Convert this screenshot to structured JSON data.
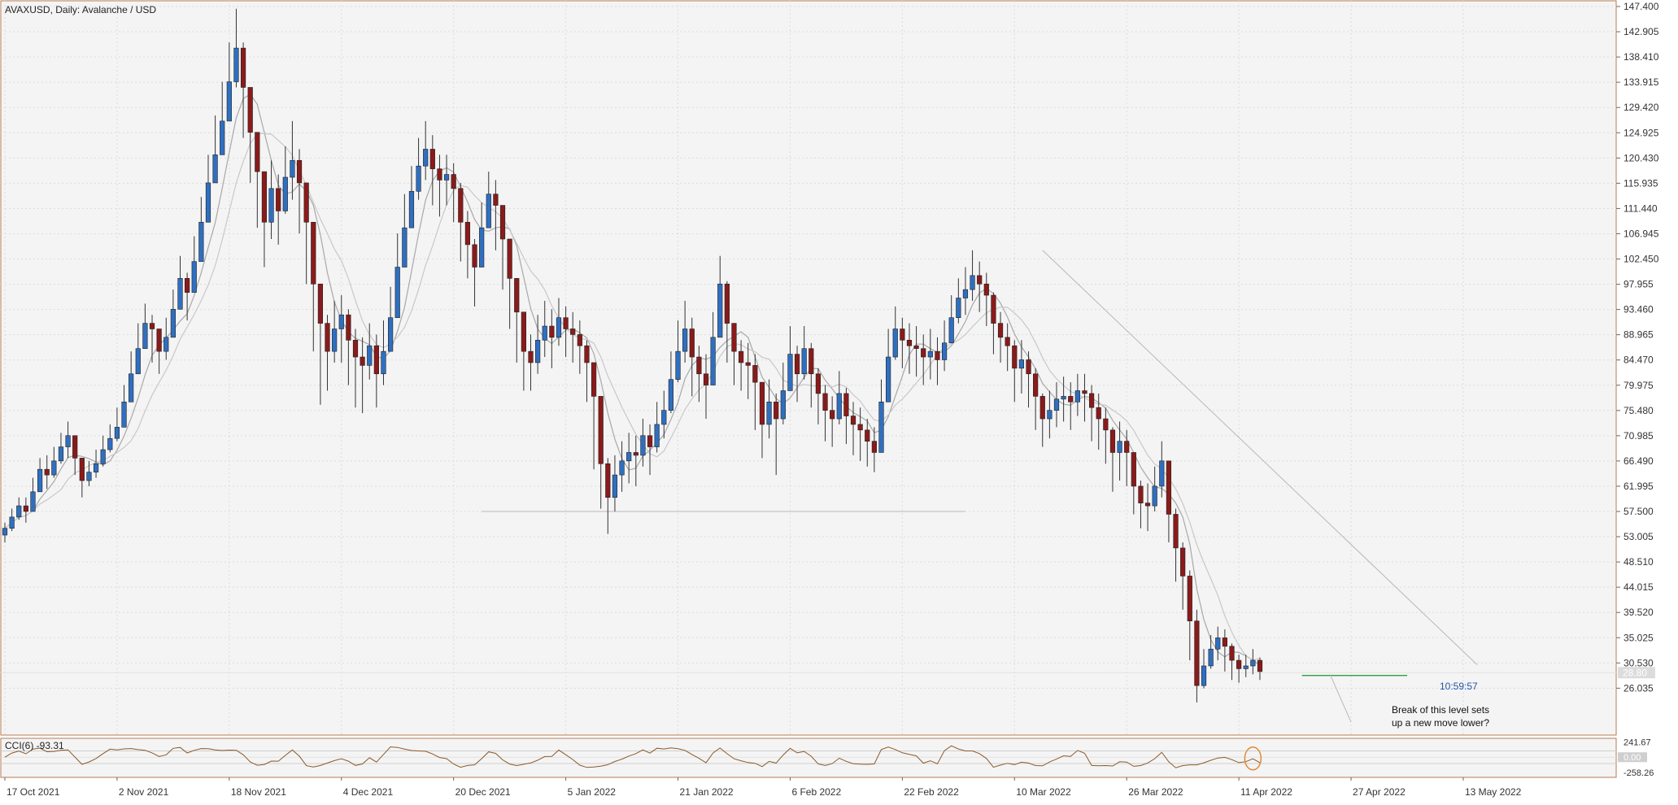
{
  "header": {
    "title": "AVAXUSD, Daily:  Avalanche / USD"
  },
  "colors": {
    "background": "#f4f4f4",
    "frame": "#b87a55",
    "grid": "#dcdcdc",
    "bull": "#2f6fc0",
    "bear": "#8b1a1a",
    "ma_fast": "#a8a8a8",
    "ma_slow": "#c8c8c8",
    "trendline": "#b8b8b8",
    "support_line": "#2e9e3e",
    "cci_line": "#8b5a2b",
    "annotation_circle": "#e08a3a"
  },
  "chart_data": {
    "type": "candlestick",
    "title": "AVAXUSD, Daily:  Avalanche / USD",
    "y_ticks": [
      "147.400",
      "142.905",
      "138.410",
      "133.915",
      "129.420",
      "124.925",
      "120.430",
      "115.935",
      "111.440",
      "106.945",
      "102.450",
      "97.955",
      "93.460",
      "88.965",
      "84.470",
      "79.975",
      "75.480",
      "70.985",
      "66.490",
      "61.995",
      "57.500",
      "53.005",
      "48.510",
      "44.015",
      "39.520",
      "35.025",
      "30.530",
      "26.035"
    ],
    "ylim": [
      22.5,
      147.4
    ],
    "x_labels": [
      "17 Oct 2021",
      "2 Nov 2021",
      "18 Nov 2021",
      "4 Dec 2021",
      "20 Dec 2021",
      "5 Jan 2022",
      "21 Jan 2022",
      "6 Feb 2022",
      "22 Feb 2022",
      "10 Mar 2022",
      "26 Mar 2022",
      "11 Apr 2022",
      "27 Apr 2022",
      "13 May 2022"
    ],
    "price_close": [
      54.5,
      56.5,
      58.5,
      57.5,
      61.0,
      65.0,
      64.0,
      66.5,
      69.0,
      71.0,
      67.0,
      63.0,
      64.5,
      66.0,
      68.5,
      70.5,
      72.5,
      77.0,
      82.0,
      86.5,
      91.0,
      90.0,
      86.0,
      88.5,
      93.5,
      99.0,
      96.5,
      102.0,
      109.0,
      116.0,
      121.0,
      127.0,
      134.0,
      140.0,
      133.0,
      125.0,
      118.0,
      109.0,
      115.0,
      111.0,
      117.0,
      120.0,
      116.0,
      109.0,
      98.0,
      91.0,
      86.0,
      90.0,
      92.5,
      88.0,
      85.0,
      83.5,
      87.0,
      82.0,
      86.0,
      92.0,
      101.0,
      108.0,
      114.5,
      119.0,
      122.0,
      118.5,
      116.5,
      117.5,
      115.0,
      109.0,
      105.0,
      101.0,
      108.0,
      114.0,
      112.0,
      106.0,
      99.0,
      93.0,
      86.0,
      84.0,
      88.0,
      90.5,
      88.5,
      92.0,
      90.0,
      89.0,
      87.0,
      84.0,
      78.0,
      66.0,
      60.0,
      64.0,
      66.5,
      68.0,
      67.5,
      71.0,
      69.0,
      73.0,
      75.5,
      81.0,
      86.0,
      90.0,
      85.0,
      82.0,
      80.0,
      88.5,
      98.0,
      91.0,
      86.0,
      84.0,
      83.5,
      80.5,
      73.0,
      77.0,
      74.0,
      79.0,
      85.5,
      82.0,
      86.5,
      82.0,
      78.5,
      75.5,
      74.0,
      78.5,
      74.5,
      73.0,
      72.0,
      70.0,
      68.0,
      77.0,
      85.0,
      90.0,
      88.0,
      87.0,
      86.5,
      85.0,
      86.0,
      84.5,
      87.5,
      92.0,
      95.5,
      97.0,
      99.5,
      98.0,
      96.0,
      91.0,
      88.5,
      87.0,
      83.0,
      84.5,
      82.0,
      78.0,
      74.0,
      75.5,
      77.5,
      78.0,
      77.0,
      79.0,
      78.5,
      76.0,
      74.0,
      72.0,
      68.0,
      70.0,
      68.0,
      62.0,
      59.0,
      58.5,
      62.0,
      66.5,
      57.0,
      51.0,
      46.0,
      38.0,
      26.5,
      30.0,
      33.0,
      35.0,
      33.5,
      31.0,
      29.5,
      30.0,
      31.0,
      29.0
    ],
    "price_high": [
      55.5,
      58.0,
      60.0,
      60.0,
      63.5,
      67.0,
      67.5,
      69.0,
      71.5,
      73.5,
      70.0,
      66.5,
      66.5,
      68.5,
      71.0,
      73.0,
      76.0,
      80.0,
      86.0,
      91.0,
      94.5,
      92.5,
      89.5,
      92.0,
      97.0,
      103.0,
      100.0,
      106.5,
      113.5,
      121.0,
      128.0,
      134.0,
      141.0,
      147.0,
      141.0,
      129.0,
      123.0,
      117.0,
      120.0,
      117.5,
      122.5,
      127.0,
      122.0,
      115.5,
      108.0,
      97.0,
      92.5,
      95.0,
      96.0,
      93.5,
      90.0,
      88.5,
      91.0,
      89.0,
      91.5,
      97.5,
      107.0,
      114.0,
      119.0,
      124.0,
      127.0,
      124.5,
      121.0,
      121.0,
      119.5,
      116.0,
      111.0,
      106.0,
      112.5,
      118.0,
      116.5,
      111.0,
      105.0,
      98.5,
      92.5,
      89.0,
      92.5,
      95.0,
      93.5,
      95.5,
      94.0,
      93.0,
      91.5,
      88.0,
      84.0,
      75.0,
      67.0,
      67.5,
      70.0,
      71.5,
      71.0,
      74.0,
      73.0,
      77.0,
      79.0,
      86.0,
      91.5,
      95.0,
      92.0,
      87.0,
      85.5,
      93.0,
      103.0,
      98.5,
      90.5,
      88.0,
      87.5,
      85.5,
      79.0,
      81.0,
      78.5,
      84.0,
      90.5,
      87.0,
      90.5,
      87.5,
      83.0,
      80.0,
      78.0,
      82.5,
      79.5,
      77.0,
      76.0,
      74.0,
      72.5,
      81.0,
      90.0,
      94.0,
      92.0,
      91.0,
      90.5,
      89.0,
      90.0,
      88.5,
      91.5,
      96.0,
      99.0,
      101.0,
      104.0,
      102.0,
      100.0,
      96.5,
      93.0,
      91.0,
      88.0,
      88.0,
      86.0,
      83.0,
      78.5,
      79.0,
      80.5,
      81.5,
      80.5,
      82.0,
      82.0,
      80.0,
      78.5,
      76.0,
      72.5,
      73.5,
      72.0,
      68.0,
      63.0,
      62.5,
      65.5,
      70.0,
      66.0,
      58.0,
      52.0,
      47.0,
      40.0,
      33.0,
      35.5,
      37.0,
      36.5,
      34.0,
      32.0,
      32.0,
      33.0,
      31.5
    ],
    "price_low": [
      52.0,
      54.0,
      56.0,
      55.5,
      58.5,
      62.5,
      61.5,
      63.5,
      66.0,
      67.0,
      64.0,
      60.0,
      62.0,
      63.5,
      65.5,
      68.0,
      70.0,
      74.0,
      78.5,
      82.0,
      86.5,
      84.0,
      82.0,
      84.5,
      89.0,
      94.0,
      91.5,
      97.5,
      104.0,
      110.5,
      116.0,
      121.5,
      128.0,
      133.0,
      124.0,
      116.0,
      108.0,
      101.0,
      106.0,
      105.0,
      110.5,
      113.0,
      107.0,
      98.0,
      86.0,
      76.5,
      79.0,
      84.0,
      84.0,
      80.0,
      76.0,
      75.0,
      81.0,
      76.0,
      80.0,
      86.0,
      94.5,
      102.0,
      108.0,
      113.0,
      116.5,
      112.0,
      110.0,
      112.0,
      109.0,
      102.0,
      99.0,
      94.0,
      101.0,
      108.5,
      104.0,
      97.0,
      90.0,
      84.0,
      79.0,
      79.0,
      82.0,
      85.0,
      83.0,
      87.0,
      85.0,
      84.0,
      82.0,
      77.0,
      65.0,
      58.0,
      53.5,
      57.5,
      61.0,
      62.5,
      62.0,
      65.5,
      64.0,
      68.0,
      70.5,
      75.0,
      80.5,
      84.0,
      78.0,
      77.0,
      74.0,
      82.0,
      90.0,
      84.0,
      80.0,
      79.0,
      77.5,
      72.0,
      67.0,
      70.5,
      64.0,
      73.0,
      79.0,
      77.0,
      81.0,
      76.0,
      73.0,
      70.0,
      69.0,
      73.0,
      69.5,
      67.5,
      66.5,
      65.5,
      64.5,
      71.0,
      79.5,
      84.5,
      83.0,
      82.0,
      81.5,
      80.0,
      81.0,
      80.0,
      82.5,
      87.5,
      91.0,
      92.5,
      95.0,
      93.0,
      90.5,
      85.5,
      84.0,
      82.5,
      77.0,
      78.5,
      76.0,
      72.0,
      69.0,
      70.5,
      72.5,
      73.5,
      72.0,
      74.5,
      73.5,
      70.0,
      68.5,
      66.0,
      61.0,
      63.0,
      62.0,
      57.0,
      54.5,
      54.0,
      57.5,
      60.0,
      52.0,
      45.0,
      40.0,
      31.0,
      23.5,
      26.0,
      29.5,
      31.0,
      29.0,
      27.5,
      27.0,
      28.0,
      28.5,
      27.5
    ],
    "trendline_top": {
      "from": {
        "date": "27 Mar 2022",
        "price": 104.0
      },
      "to": {
        "date": "27 May 2022",
        "price": 30.2
      }
    },
    "support_level_high": 57.5,
    "support_level_low": 28.3,
    "current_price_label": "28.80",
    "countdown": "10:59:57",
    "annotation": [
      "Break of this level sets",
      "up a new move lower?"
    ],
    "cci": {
      "label": "CCI(6) -93.31",
      "ticks": [
        "241.67",
        "0.00",
        "-258.26"
      ],
      "ylim": [
        -320,
        300
      ],
      "levels": [
        100,
        -100
      ]
    }
  }
}
